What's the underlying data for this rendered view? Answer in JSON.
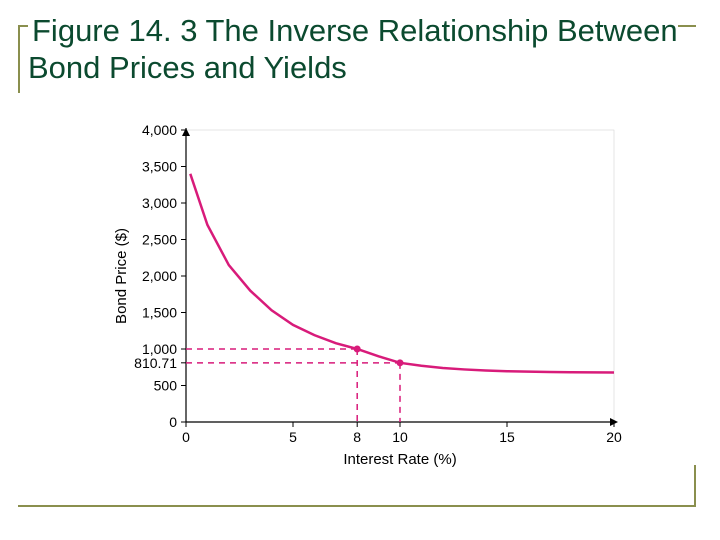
{
  "title": "Figure 14. 3 The Inverse Relationship Between Bond Prices and Yields",
  "title_color": "#0b4a2f",
  "rule_color": "#8a8f4e",
  "chart": {
    "type": "line",
    "background_color": "#ffffff",
    "curve_color": "#d81b7a",
    "ref_color": "#d81b7a",
    "axis_color": "#000000",
    "xlabel": "Interest Rate (%)",
    "ylabel": "Bond Price ($)",
    "label_fontsize": 15,
    "tick_fontsize": 14,
    "xlim": [
      0,
      20
    ],
    "ylim": [
      0,
      4000
    ],
    "xticks": [
      0,
      5,
      10,
      15,
      20
    ],
    "yticks": [
      0,
      500,
      1000,
      1500,
      2000,
      2500,
      3000,
      3500,
      4000
    ],
    "ytick_labels": [
      "0",
      "500",
      "1,000",
      "1,500",
      "2,000",
      "2,500",
      "3,000",
      "3,500",
      "4,000"
    ],
    "extra_ytick": {
      "value": 810.71,
      "label": "810.71"
    },
    "extra_xticks": [
      8
    ],
    "curve_points": [
      [
        0.2,
        3400
      ],
      [
        1,
        2700
      ],
      [
        2,
        2150
      ],
      [
        3,
        1800
      ],
      [
        4,
        1530
      ],
      [
        5,
        1330
      ],
      [
        6,
        1190
      ],
      [
        7,
        1080
      ],
      [
        8,
        1000
      ],
      [
        9,
        900
      ],
      [
        10,
        810.71
      ],
      [
        11,
        770
      ],
      [
        12,
        740
      ],
      [
        13,
        720
      ],
      [
        14,
        705
      ],
      [
        15,
        695
      ],
      [
        16,
        690
      ],
      [
        17,
        685
      ],
      [
        18,
        682
      ],
      [
        19,
        680
      ],
      [
        20,
        678
      ]
    ],
    "reference_points": [
      {
        "x": 8,
        "y": 1000
      },
      {
        "x": 10,
        "y": 810.71
      }
    ],
    "line_width": 2.5,
    "dash_pattern": "6 5",
    "dot_radius": 3.5
  }
}
